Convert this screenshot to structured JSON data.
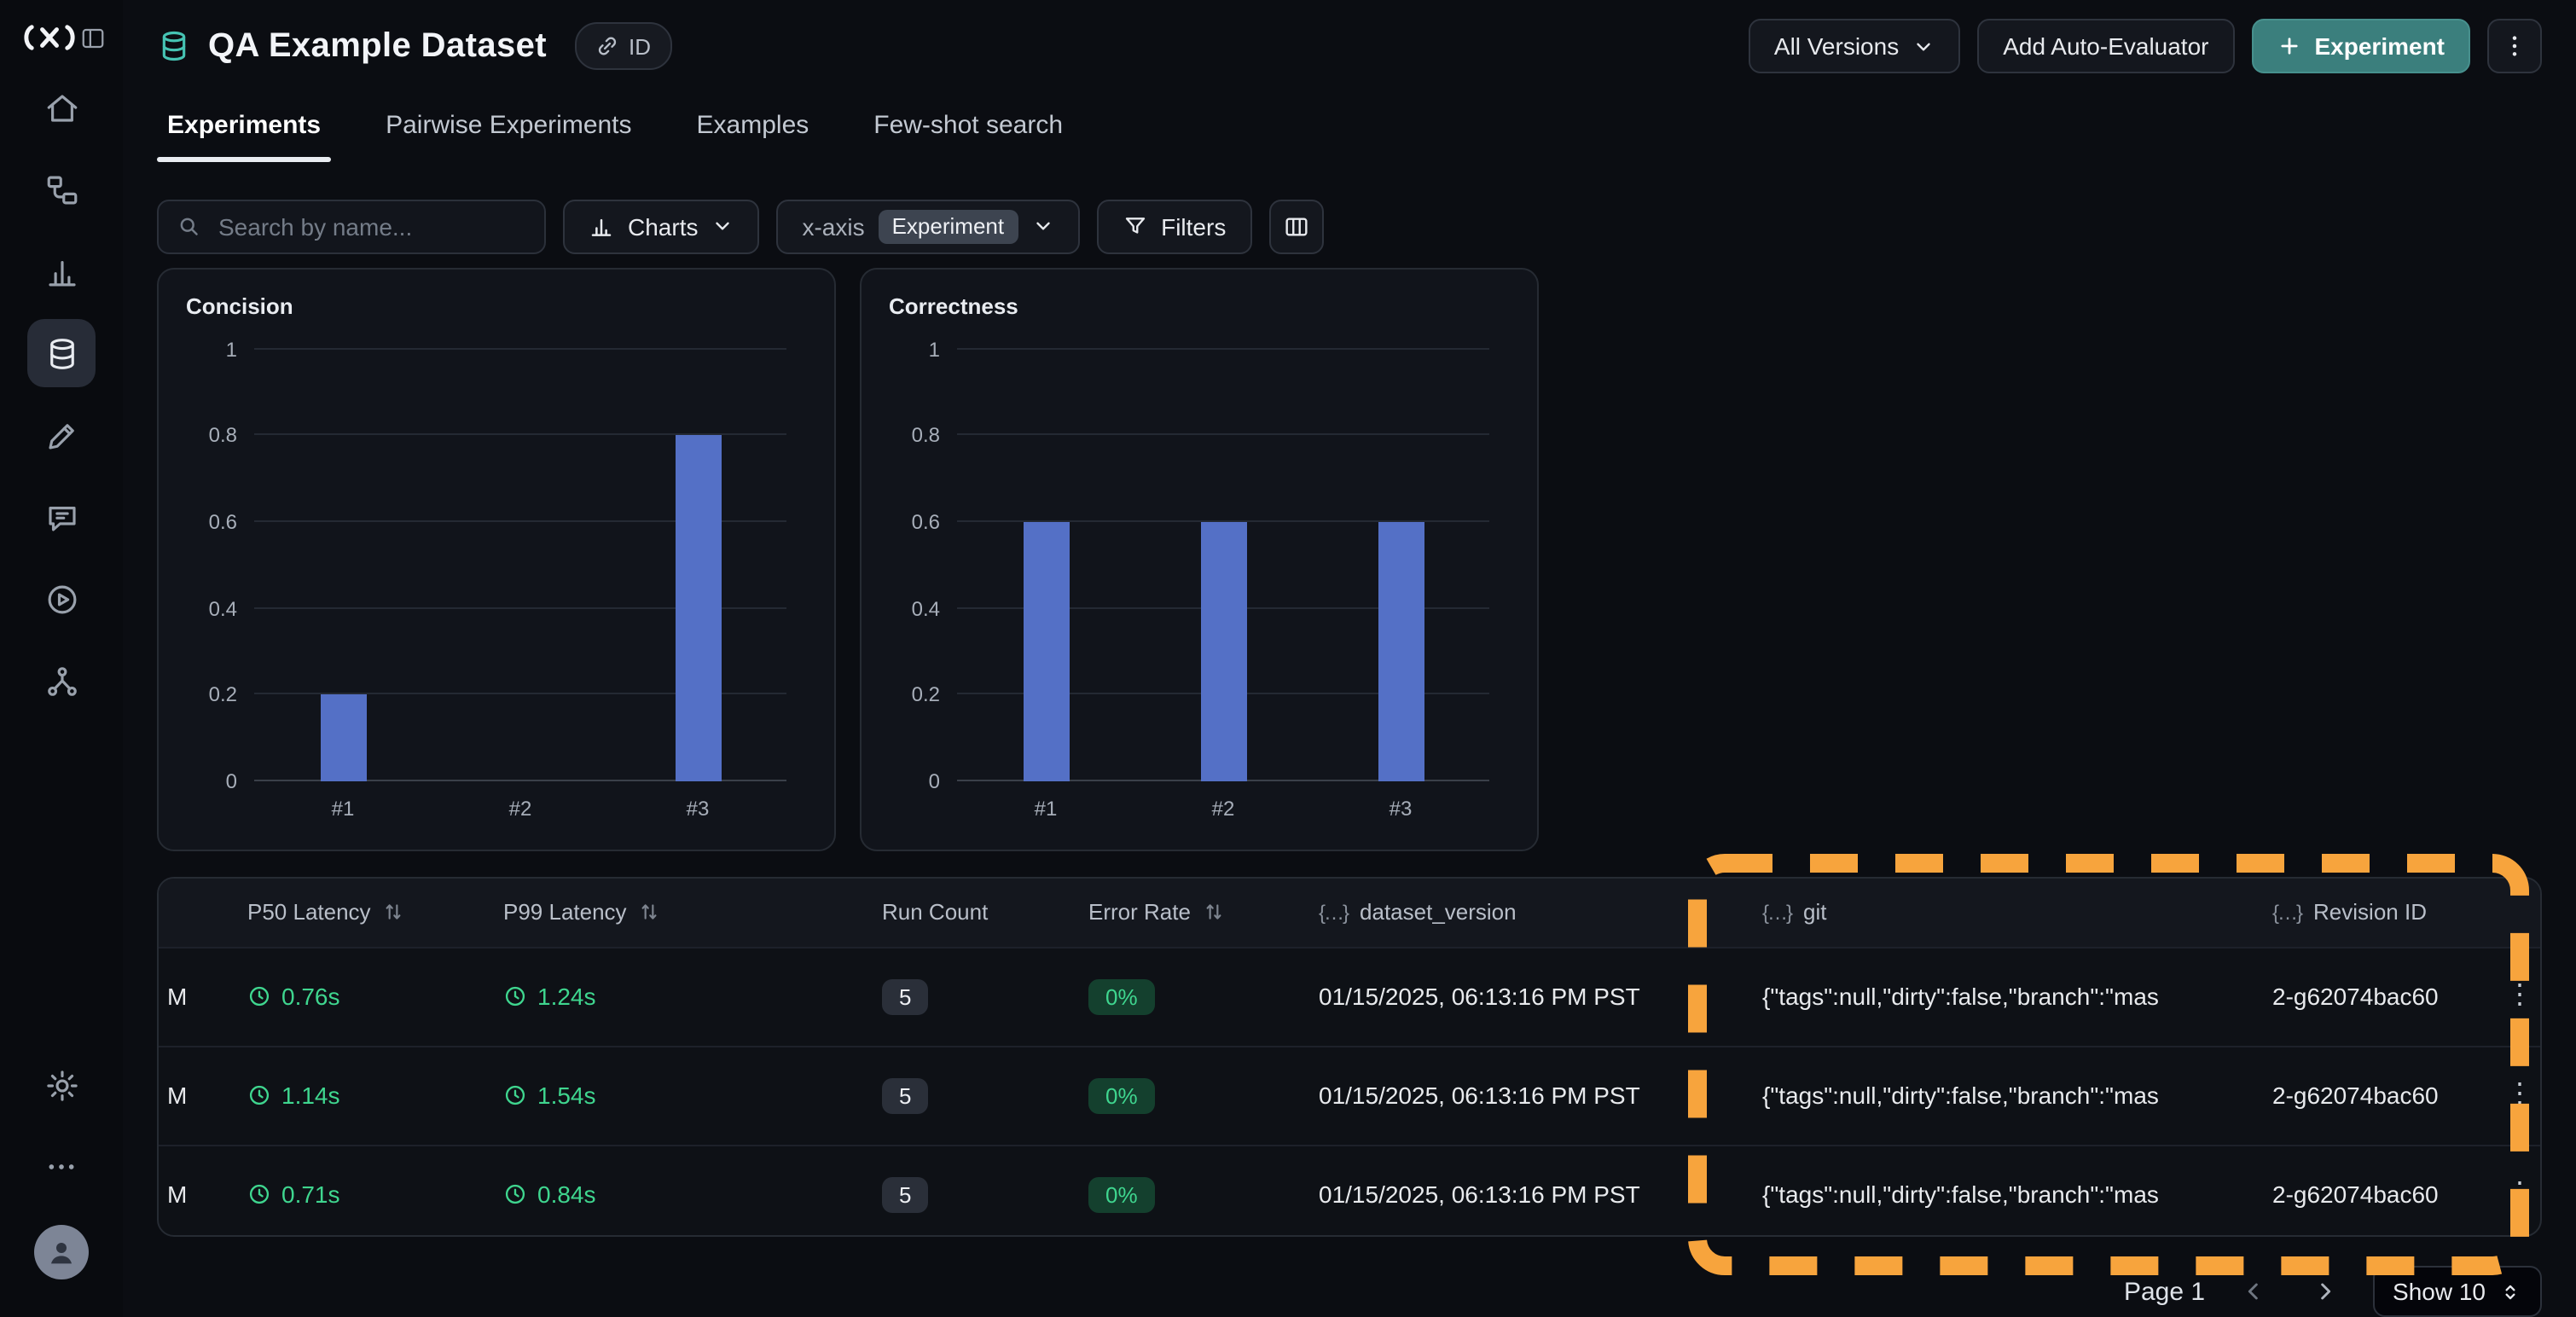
{
  "header": {
    "title": "QA Example Dataset",
    "id_chip": "ID",
    "all_versions": "All Versions",
    "add_auto_evaluator": "Add Auto-Evaluator",
    "new_experiment": "Experiment"
  },
  "tabs": [
    {
      "label": "Experiments",
      "active": true
    },
    {
      "label": "Pairwise Experiments",
      "active": false
    },
    {
      "label": "Examples",
      "active": false
    },
    {
      "label": "Few-shot search",
      "active": false
    }
  ],
  "toolbar": {
    "search_placeholder": "Search by name...",
    "charts_label": "Charts",
    "xaxis_label": "x-axis",
    "xaxis_value": "Experiment",
    "filters_label": "Filters"
  },
  "chart_data": [
    {
      "type": "bar",
      "title": "Concision",
      "categories": [
        "#1",
        "#2",
        "#3"
      ],
      "values": [
        0.2,
        0,
        0.8
      ],
      "xlabel": "",
      "ylabel": "",
      "ylim": [
        0,
        1
      ],
      "yticks": [
        0,
        0.2,
        0.4,
        0.6,
        0.8,
        1
      ],
      "grid": true,
      "legend": false,
      "bar_color": "#5470c6"
    },
    {
      "type": "bar",
      "title": "Correctness",
      "categories": [
        "#1",
        "#2",
        "#3"
      ],
      "values": [
        0.6,
        0.6,
        0.6
      ],
      "xlabel": "",
      "ylabel": "",
      "ylim": [
        0,
        1
      ],
      "yticks": [
        0,
        0.2,
        0.4,
        0.6,
        0.8,
        1
      ],
      "grid": true,
      "legend": false,
      "bar_color": "#5470c6"
    }
  ],
  "table": {
    "columns": [
      {
        "label": ""
      },
      {
        "label": "P50 Latency",
        "sortable": true
      },
      {
        "label": "P99 Latency",
        "sortable": true
      },
      {
        "label": "Run Count",
        "sortable": false
      },
      {
        "label": "Error Rate",
        "sortable": true
      },
      {
        "label": "dataset_version",
        "json_icon": true
      },
      {
        "label": "git",
        "json_icon": true
      },
      {
        "label": "Revision ID",
        "json_icon": true
      }
    ],
    "rows": [
      {
        "name": "M",
        "p50": "0.76s",
        "p99": "1.24s",
        "run_count": "5",
        "error_rate": "0%",
        "dataset_version": "01/15/2025, 06:13:16 PM PST",
        "git": "{\"tags\":null,\"dirty\":false,\"branch\":\"mas",
        "revision_id": "2-g62074bac60"
      },
      {
        "name": "M",
        "p50": "1.14s",
        "p99": "1.54s",
        "run_count": "5",
        "error_rate": "0%",
        "dataset_version": "01/15/2025, 06:13:16 PM PST",
        "git": "{\"tags\":null,\"dirty\":false,\"branch\":\"mas",
        "revision_id": "2-g62074bac60"
      },
      {
        "name": "M",
        "p50": "0.71s",
        "p99": "0.84s",
        "run_count": "5",
        "error_rate": "0%",
        "dataset_version": "01/15/2025, 06:13:16 PM PST",
        "git": "{\"tags\":null,\"dirty\":false,\"branch\":\"mas",
        "revision_id": "2-g62074bac60"
      }
    ]
  },
  "pagination": {
    "page_label": "Page 1",
    "show_label": "Show 10"
  },
  "icons": {
    "braces": "{…}",
    "kebab": "⋮"
  },
  "colors": {
    "accent_teal": "#3b7f7d",
    "bar_blue": "#5470c6",
    "success_green": "#3fd68f",
    "annotation_orange": "#f7a43d",
    "background": "#0b0d12"
  }
}
